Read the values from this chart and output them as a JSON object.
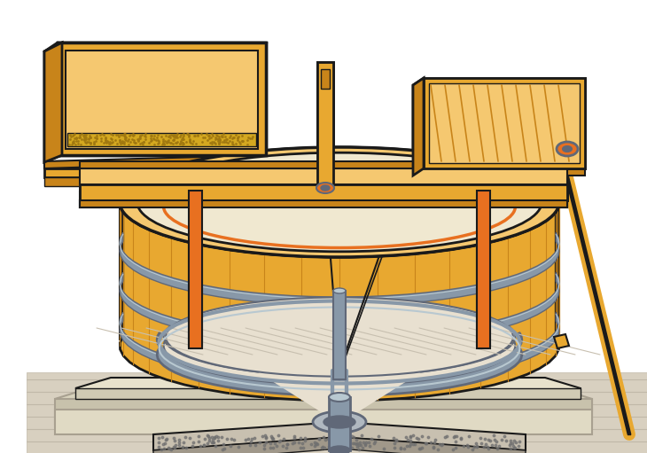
{
  "bg": "#ffffff",
  "wood": "#E8A830",
  "wood_light": "#F5C870",
  "wood_dark": "#C8841A",
  "wood_shade": "#A06010",
  "black": "#1A1A1A",
  "orange": "#E87020",
  "gray": "#8898A8",
  "gray_dark": "#606878",
  "gray_light": "#B8C8D0",
  "stone": "#C8C0B0",
  "stone_light": "#E8E0D0",
  "stone_dark": "#A0988A",
  "floor": "#D8D0C0",
  "floor_line": "#C0B8A8",
  "cream": "#F0E8D0",
  "tan": "#D4C8A0",
  "metal": "#9098A8",
  "figsize": [
    7.3,
    5.11
  ],
  "dpi": 100
}
